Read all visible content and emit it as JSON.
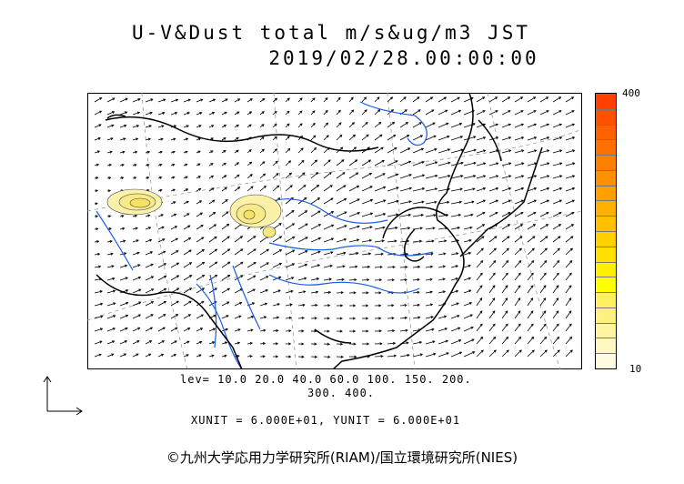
{
  "title": "U-V&Dust total m/s&ug/m3 JST",
  "datetime": "2019/02/28.00:00:00",
  "colorbar": {
    "max_label": "400",
    "min_label": "10",
    "colors": [
      "#fffbe0",
      "#fff8c0",
      "#fff4a0",
      "#fff080",
      "#fff060",
      "#ffff00",
      "#fff000",
      "#ffe000",
      "#ffd000",
      "#ffc000",
      "#ffb000",
      "#ffa000",
      "#ff9000",
      "#ff8000",
      "#ff7000",
      "#ff6000",
      "#ff5000",
      "#ff4000"
    ]
  },
  "levels_line1": "lev= 10.0 20.0 40.0 60.0 100. 150. 200.",
  "levels_line2": "300. 400.",
  "units": "XUNIT = 6.000E+01, YUNIT = 6.000E+01",
  "credit": "©九州大学応用力学研究所(RIAM)/国立環境研究所(NIES)",
  "colors": {
    "coast": "#000000",
    "river": "#1a5ce6",
    "grid": "#888888",
    "arrow": "#000000"
  }
}
